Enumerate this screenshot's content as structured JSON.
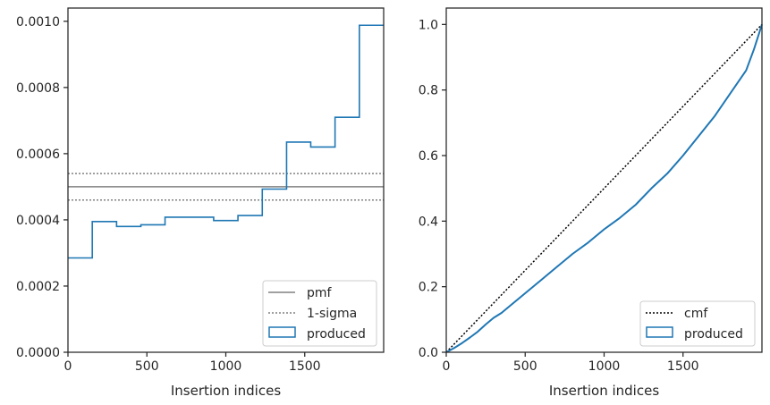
{
  "chart_data": [
    {
      "type": "step",
      "title": "",
      "xlabel": "Insertion indices",
      "ylabel": "",
      "xlim": [
        0,
        2000
      ],
      "ylim": [
        0,
        0.00104
      ],
      "xticks": [
        0,
        500,
        1000,
        1500
      ],
      "yticks": [
        0.0,
        0.0002,
        0.0004,
        0.0006,
        0.0008,
        0.001
      ],
      "ytick_labels": [
        "0.0000",
        "0.0002",
        "0.0004",
        "0.0006",
        "0.0008",
        "0.0010"
      ],
      "grid": false,
      "legend_placement": "lower-right",
      "series": [
        {
          "name": "pmf",
          "style": "solid",
          "color": "#808080",
          "value": 0.0005
        },
        {
          "name": "1-sigma",
          "style": "dotted",
          "color": "#808080",
          "values": [
            0.00046,
            0.00054
          ]
        },
        {
          "name": "produced",
          "style": "step",
          "color": "#1f77b4",
          "bin_edges": [
            0,
            154,
            308,
            462,
            615,
            769,
            923,
            1077,
            1231,
            1385,
            1538,
            1692,
            1846,
            2000
          ],
          "values": [
            0.000285,
            0.000395,
            0.00038,
            0.000385,
            0.000408,
            0.000408,
            0.000398,
            0.000413,
            0.000493,
            0.000635,
            0.00062,
            0.00071,
            0.000988
          ]
        }
      ]
    },
    {
      "type": "line",
      "title": "",
      "xlabel": "Insertion indices",
      "ylabel": "",
      "xlim": [
        0,
        2000
      ],
      "ylim": [
        0,
        1.05
      ],
      "xticks": [
        0,
        500,
        1000,
        1500
      ],
      "yticks": [
        0.0,
        0.2,
        0.4,
        0.6,
        0.8,
        1.0
      ],
      "ytick_labels": [
        "0.0",
        "0.2",
        "0.4",
        "0.6",
        "0.8",
        "1.0"
      ],
      "grid": false,
      "legend_placement": "lower-right",
      "series": [
        {
          "name": "cmf",
          "style": "dotted",
          "color": "#000000",
          "x": [
            0,
            2000
          ],
          "y": [
            0.0,
            1.0
          ]
        },
        {
          "name": "produced",
          "style": "solid",
          "color": "#1f77b4",
          "x": [
            0,
            50,
            100,
            150,
            200,
            250,
            300,
            350,
            400,
            500,
            600,
            700,
            800,
            900,
            1000,
            1100,
            1200,
            1300,
            1400,
            1500,
            1600,
            1700,
            1800,
            1900,
            1950,
            2000
          ],
          "y": [
            0.0,
            0.013,
            0.028,
            0.045,
            0.063,
            0.085,
            0.105,
            0.12,
            0.14,
            0.18,
            0.22,
            0.26,
            0.3,
            0.335,
            0.375,
            0.41,
            0.45,
            0.5,
            0.545,
            0.6,
            0.66,
            0.72,
            0.79,
            0.86,
            0.925,
            1.0
          ]
        }
      ]
    }
  ]
}
